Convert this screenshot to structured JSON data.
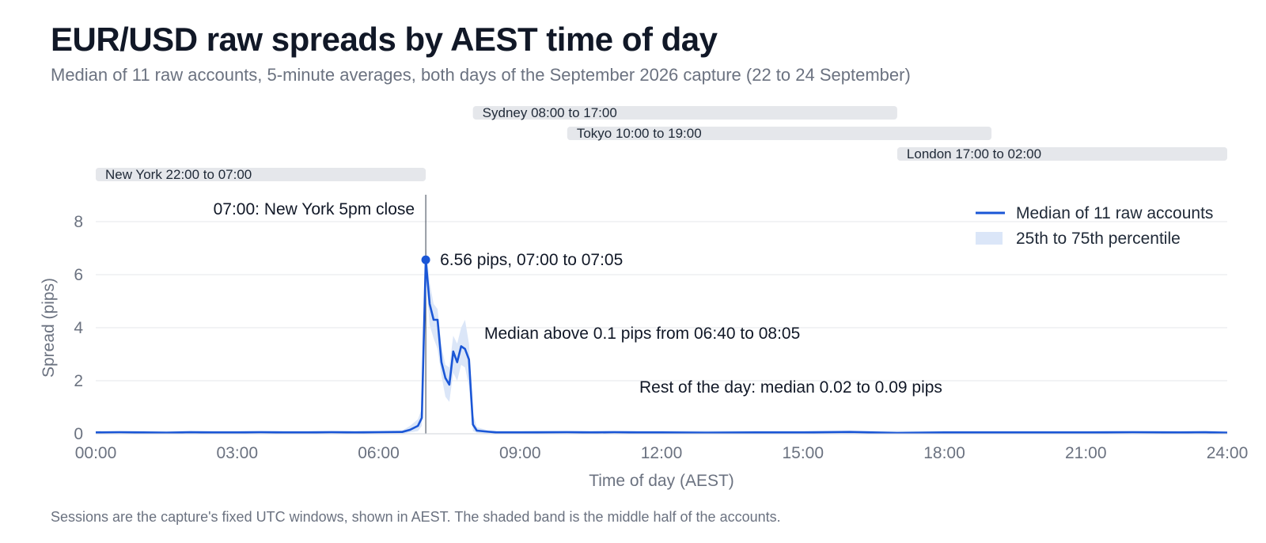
{
  "title": "EUR/USD raw spreads by AEST time of day",
  "subtitle": "Median of 11 raw accounts, 5-minute averages, both days of the September 2026 capture (22 to 24 September)",
  "note": "Sessions are the capture's fixed UTC windows, shown in AEST. The shaded band is the middle half of the accounts.",
  "colors": {
    "median_line": "#1a56d6",
    "band": "#dbe6f8",
    "session_bar": "#e5e7eb",
    "gridline": "#e5e7eb",
    "ref_line": "#374151"
  },
  "chart_data": {
    "type": "line",
    "xlabel": "Time of day (AEST)",
    "ylabel": "Spread (pips)",
    "xlim": [
      "00:00",
      "24:00"
    ],
    "ylim": [
      0,
      8.5
    ],
    "x_ticks": [
      "00:00",
      "03:00",
      "06:00",
      "09:00",
      "12:00",
      "15:00",
      "18:00",
      "21:00",
      "24:00"
    ],
    "y_ticks": [
      0,
      2,
      4,
      6,
      8
    ],
    "grid": true,
    "legend_position": "top-right",
    "legend": [
      "Median of 11 raw accounts",
      "25th to 75th percentile"
    ],
    "series": [
      {
        "name": "Median of 11 raw accounts",
        "type": "line",
        "points": [
          [
            "00:00",
            0.05
          ],
          [
            "00:30",
            0.06
          ],
          [
            "01:00",
            0.05
          ],
          [
            "01:30",
            0.04
          ],
          [
            "02:00",
            0.06
          ],
          [
            "02:30",
            0.05
          ],
          [
            "03:00",
            0.05
          ],
          [
            "03:30",
            0.06
          ],
          [
            "04:00",
            0.05
          ],
          [
            "04:30",
            0.05
          ],
          [
            "05:00",
            0.06
          ],
          [
            "05:30",
            0.05
          ],
          [
            "06:00",
            0.06
          ],
          [
            "06:30",
            0.07
          ],
          [
            "06:40",
            0.15
          ],
          [
            "06:50",
            0.3
          ],
          [
            "06:55",
            0.6
          ],
          [
            "07:00",
            6.56
          ],
          [
            "07:05",
            4.9
          ],
          [
            "07:10",
            4.3
          ],
          [
            "07:15",
            4.3
          ],
          [
            "07:20",
            2.7
          ],
          [
            "07:25",
            2.1
          ],
          [
            "07:30",
            1.85
          ],
          [
            "07:35",
            3.1
          ],
          [
            "07:40",
            2.7
          ],
          [
            "07:45",
            3.3
          ],
          [
            "07:50",
            3.2
          ],
          [
            "07:55",
            2.8
          ],
          [
            "08:00",
            0.35
          ],
          [
            "08:05",
            0.12
          ],
          [
            "08:15",
            0.09
          ],
          [
            "08:30",
            0.05
          ],
          [
            "09:00",
            0.05
          ],
          [
            "10:00",
            0.06
          ],
          [
            "10:30",
            0.05
          ],
          [
            "11:00",
            0.06
          ],
          [
            "11:30",
            0.05
          ],
          [
            "12:00",
            0.05
          ],
          [
            "13:00",
            0.04
          ],
          [
            "14:00",
            0.05
          ],
          [
            "15:00",
            0.05
          ],
          [
            "16:00",
            0.07
          ],
          [
            "17:00",
            0.03
          ],
          [
            "17:30",
            0.04
          ],
          [
            "18:00",
            0.05
          ],
          [
            "19:00",
            0.05
          ],
          [
            "20:00",
            0.05
          ],
          [
            "21:00",
            0.05
          ],
          [
            "22:00",
            0.06
          ],
          [
            "23:00",
            0.05
          ],
          [
            "23:30",
            0.06
          ],
          [
            "24:00",
            0.04
          ]
        ]
      },
      {
        "name": "25th to 75th percentile",
        "type": "band",
        "points": [
          [
            "00:00",
            0.0,
            0.1
          ],
          [
            "06:30",
            0.0,
            0.12
          ],
          [
            "06:40",
            0.05,
            0.3
          ],
          [
            "06:50",
            0.1,
            0.55
          ],
          [
            "06:55",
            0.3,
            0.95
          ],
          [
            "07:00",
            5.9,
            7.1
          ],
          [
            "07:05",
            4.1,
            5.7
          ],
          [
            "07:10",
            3.6,
            4.9
          ],
          [
            "07:15",
            3.2,
            4.7
          ],
          [
            "07:20",
            2.2,
            3.3
          ],
          [
            "07:25",
            1.4,
            2.6
          ],
          [
            "07:30",
            1.2,
            2.5
          ],
          [
            "07:35",
            2.3,
            3.7
          ],
          [
            "07:40",
            2.0,
            3.4
          ],
          [
            "07:45",
            2.6,
            4.0
          ],
          [
            "07:50",
            2.5,
            4.3
          ],
          [
            "07:55",
            1.8,
            3.4
          ],
          [
            "08:00",
            0.1,
            0.75
          ],
          [
            "08:05",
            0.04,
            0.25
          ],
          [
            "08:20",
            0.0,
            0.12
          ],
          [
            "24:00",
            0.0,
            0.1
          ]
        ]
      }
    ],
    "sessions": [
      {
        "name": "Sydney",
        "label": "Sydney 08:00 to 17:00",
        "start": "08:00",
        "end": "17:00"
      },
      {
        "name": "Tokyo",
        "label": "Tokyo 10:00 to 19:00",
        "start": "10:00",
        "end": "19:00"
      },
      {
        "name": "London",
        "label": "London 17:00 to 02:00",
        "start": "17:00",
        "end": "02:00"
      },
      {
        "name": "New York",
        "label": "New York 22:00 to 07:00",
        "start": "22:00",
        "end": "07:00"
      }
    ],
    "annotations": [
      {
        "name": "close-marker",
        "text": "07:00: New York 5pm close",
        "x": "07:00"
      },
      {
        "name": "peak-label",
        "text": "6.56 pips, 07:00 to 07:05",
        "x": "07:00",
        "y": 6.56
      },
      {
        "name": "elevated-window",
        "text": "Median above 0.1 pips from 06:40 to 08:05"
      },
      {
        "name": "rest-of-day",
        "text": "Rest of the day: median 0.02 to 0.09 pips"
      }
    ]
  }
}
